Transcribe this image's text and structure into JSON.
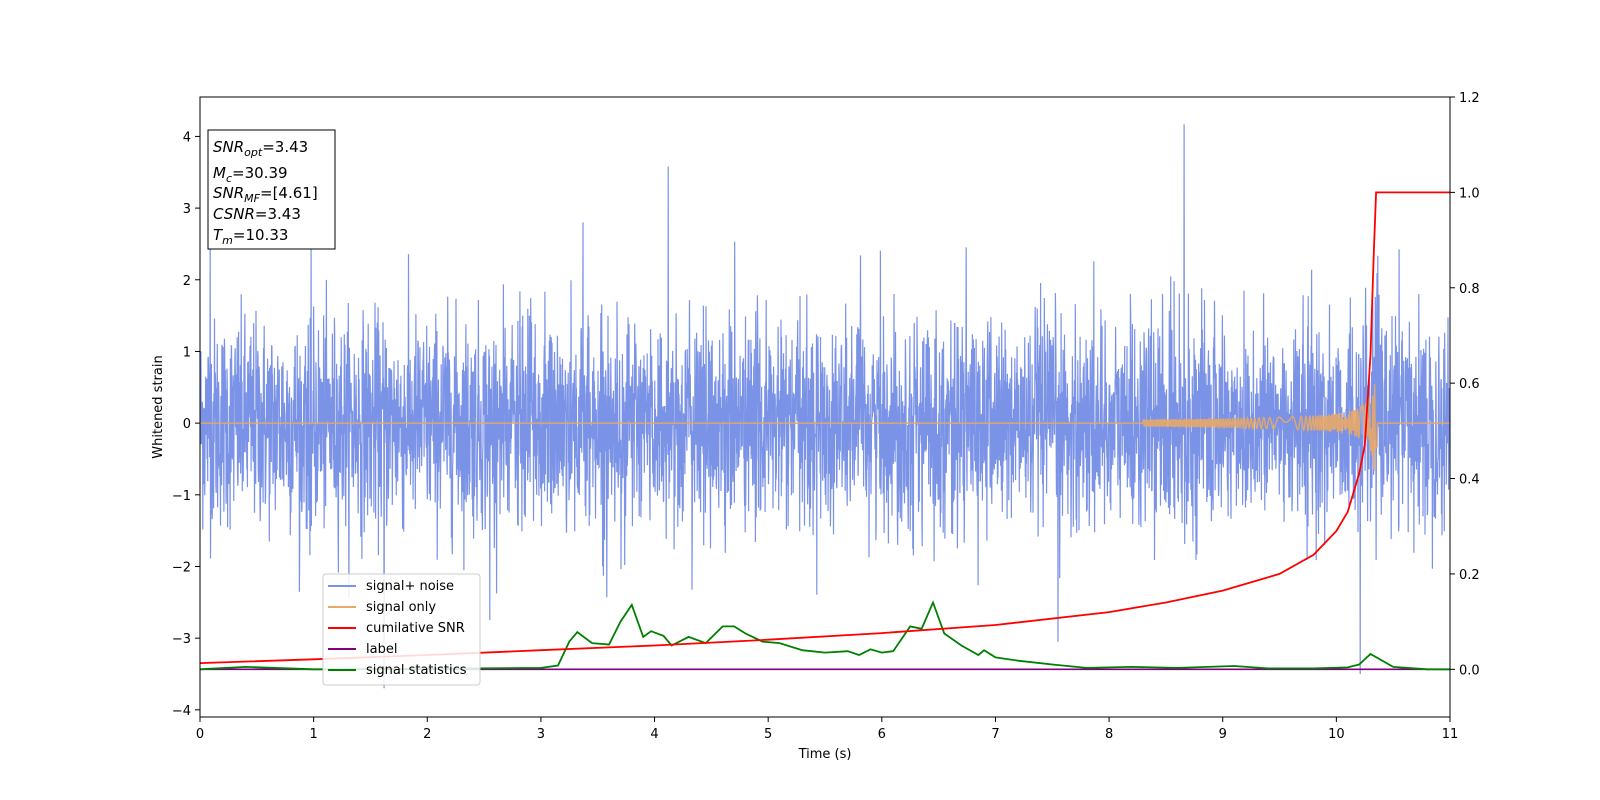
{
  "chart_data": {
    "type": "line",
    "title": "",
    "xlabel": "Time (s)",
    "ylabel_left": "Whitened strain",
    "ylabel_right": "",
    "xlim": [
      0,
      11
    ],
    "ylim_left": [
      -4.1,
      4.55
    ],
    "ylim_right": [
      -0.1,
      1.2
    ],
    "xticks": [
      "0",
      "1",
      "2",
      "3",
      "4",
      "5",
      "6",
      "7",
      "8",
      "9",
      "10",
      "11"
    ],
    "yticks_left": [
      "4",
      "3",
      "2",
      "1",
      "0",
      "−1",
      "−2",
      "−3",
      "−4"
    ],
    "yticks_right": [
      "1.2",
      "1.0",
      "0.8",
      "0.6",
      "0.4",
      "0.2",
      "0.0"
    ],
    "grid": false,
    "legend_position": "lower-left",
    "colors": {
      "signal_noise": "#7b93e6",
      "signal_only": "#e8a868",
      "cumulative_snr": "#ff0000",
      "label": "#800080",
      "signal_statistics": "#008000"
    },
    "series": [
      {
        "name": "signal+ noise",
        "axis": "left",
        "description_values": {
          "noise_std_approx": 0.7,
          "typical_range": [
            -2.3,
            2.4
          ],
          "spikes": [
            {
              "x": 4.12,
              "y": 3.58
            },
            {
              "x": 8.66,
              "y": 4.17
            },
            {
              "x": 1.62,
              "y": -3.7
            },
            {
              "x": 10.21,
              "y": -3.5
            },
            {
              "x": 7.55,
              "y": -3.05
            },
            {
              "x": 2.55,
              "y": -2.75
            },
            {
              "x": 0.09,
              "y": 2.6
            },
            {
              "x": 3.37,
              "y": 2.8
            }
          ]
        }
      },
      {
        "name": "signal only",
        "axis": "left",
        "baseline": 0,
        "chirp": {
          "start": 8.3,
          "peak_time": 10.33,
          "peak_amplitude": 0.65,
          "end_time": 10.36
        }
      },
      {
        "name": "cumilative SNR",
        "axis": "right",
        "x": [
          0,
          1,
          2,
          3,
          4,
          5,
          6,
          7,
          8,
          8.5,
          9,
          9.5,
          9.8,
          10.0,
          10.1,
          10.2,
          10.25,
          10.3,
          10.33,
          10.35,
          11
        ],
        "y": [
          0.013,
          0.021,
          0.03,
          0.04,
          0.05,
          0.062,
          0.076,
          0.093,
          0.12,
          0.14,
          0.165,
          0.2,
          0.24,
          0.29,
          0.33,
          0.41,
          0.47,
          0.66,
          0.88,
          1.0,
          1.0
        ]
      },
      {
        "name": "label",
        "axis": "right",
        "x": [
          0,
          11
        ],
        "y": [
          0,
          0
        ]
      },
      {
        "name": "signal statistics",
        "axis": "right",
        "x": [
          0,
          0.4,
          1,
          2,
          3,
          3.15,
          3.25,
          3.32,
          3.45,
          3.6,
          3.7,
          3.8,
          3.9,
          3.97,
          4.08,
          4.15,
          4.3,
          4.45,
          4.6,
          4.7,
          4.8,
          4.95,
          5.1,
          5.3,
          5.5,
          5.7,
          5.8,
          5.9,
          6.0,
          6.1,
          6.25,
          6.35,
          6.45,
          6.55,
          6.7,
          6.85,
          6.9,
          7.0,
          7.2,
          7.5,
          7.8,
          8.2,
          8.6,
          9.1,
          9.4,
          9.8,
          10.1,
          10.2,
          10.3,
          10.5,
          10.8,
          11
        ],
        "y": [
          0.0,
          0.005,
          0.0,
          0.001,
          0.003,
          0.008,
          0.058,
          0.078,
          0.055,
          0.052,
          0.1,
          0.135,
          0.068,
          0.08,
          0.07,
          0.05,
          0.068,
          0.055,
          0.09,
          0.09,
          0.075,
          0.058,
          0.055,
          0.04,
          0.035,
          0.038,
          0.03,
          0.042,
          0.035,
          0.038,
          0.09,
          0.085,
          0.14,
          0.075,
          0.05,
          0.03,
          0.04,
          0.025,
          0.018,
          0.01,
          0.003,
          0.005,
          0.003,
          0.007,
          0.002,
          0.002,
          0.004,
          0.01,
          0.032,
          0.005,
          0.0,
          0.0
        ]
      }
    ],
    "annotation": {
      "lines": [
        {
          "symbol": "SNR",
          "sub": "opt",
          "value": "=3.43"
        },
        {
          "symbol": "M",
          "sub": "c",
          "value": "=30.39"
        },
        {
          "symbol": "SNR",
          "sub": "MF",
          "value": "=[4.61]"
        },
        {
          "symbol": "CSNR",
          "sub": "",
          "value": "=3.43"
        },
        {
          "symbol": "T",
          "sub": "m",
          "value": "=10.33"
        }
      ]
    }
  }
}
